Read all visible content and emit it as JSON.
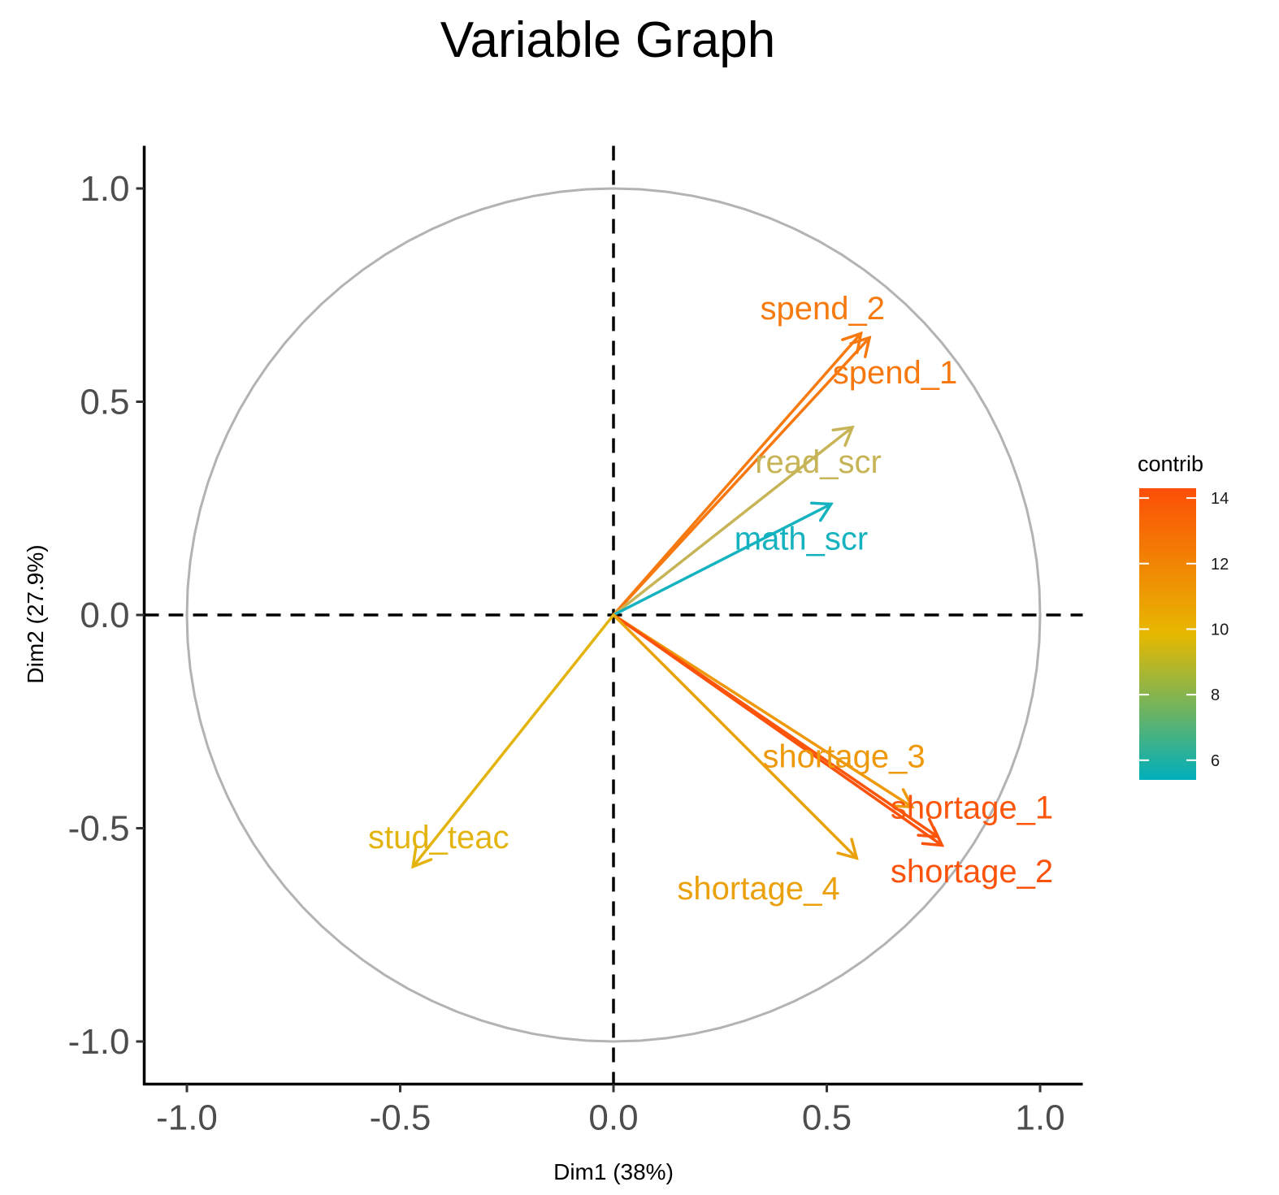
{
  "chart_data": {
    "type": "scatter",
    "subtype": "pca-variable-correlation-circle",
    "title": "Variable Graph",
    "xlabel": "Dim1 (38%)",
    "ylabel": "Dim2 (27.9%)",
    "xlim": [
      -1.1,
      1.1
    ],
    "ylim": [
      -1.1,
      1.1
    ],
    "x_ticks": [
      -1.0,
      -0.5,
      0.0,
      0.5,
      1.0
    ],
    "x_tick_labels": [
      "-1.0",
      "-0.5",
      "0.0",
      "0.5",
      "1.0"
    ],
    "y_ticks": [
      -1.0,
      -0.5,
      0.0,
      0.5,
      1.0
    ],
    "y_tick_labels": [
      "-1.0",
      "-0.5",
      "0.0",
      "0.5",
      "1.0"
    ],
    "grid": false,
    "reference_lines": {
      "x": 0,
      "y": 0,
      "style": "dashed"
    },
    "unit_circle": true,
    "variables": [
      {
        "name": "spend_2",
        "x": 0.58,
        "y": 0.66,
        "contrib": 13.2,
        "color": "#F77A0F",
        "label_x": 0.49,
        "label_y": 0.72
      },
      {
        "name": "spend_1",
        "x": 0.6,
        "y": 0.65,
        "contrib": 13.0,
        "color": "#F7780F",
        "label_x": 0.66,
        "label_y": 0.57
      },
      {
        "name": "read_scr",
        "x": 0.56,
        "y": 0.44,
        "contrib": 8.7,
        "color": "#C7B457",
        "label_x": 0.48,
        "label_y": 0.36
      },
      {
        "name": "math_scr",
        "x": 0.51,
        "y": 0.26,
        "contrib": 5.6,
        "color": "#15B2BF",
        "label_x": 0.44,
        "label_y": 0.18
      },
      {
        "name": "shortage_3",
        "x": 0.7,
        "y": -0.45,
        "contrib": 11.5,
        "color": "#EE980A",
        "label_x": 0.54,
        "label_y": -0.33
      },
      {
        "name": "shortage_1",
        "x": 0.76,
        "y": -0.52,
        "contrib": 14.0,
        "color": "#FC560A",
        "label_x": 0.84,
        "label_y": -0.45
      },
      {
        "name": "shortage_2",
        "x": 0.77,
        "y": -0.54,
        "contrib": 14.2,
        "color": "#FD520A",
        "label_x": 0.84,
        "label_y": -0.6
      },
      {
        "name": "shortage_4",
        "x": 0.57,
        "y": -0.57,
        "contrib": 10.8,
        "color": "#EBA10B",
        "label_x": 0.34,
        "label_y": -0.64
      },
      {
        "name": "stud_teac",
        "x": -0.47,
        "y": -0.59,
        "contrib": 10.2,
        "color": "#E3B40E",
        "label_x": -0.41,
        "label_y": -0.52
      }
    ],
    "legend": {
      "title": "contrib",
      "placement": "right",
      "type": "colorbar",
      "min": 5.4,
      "max": 14.3,
      "ticks": [
        6,
        8,
        10,
        12,
        14
      ],
      "tick_labels": [
        "6",
        "8",
        "10",
        "12",
        "14"
      ],
      "gradient": [
        "#00AFBB",
        "#E7B800",
        "#FC4E07"
      ]
    },
    "colors": {
      "circle": "#b3b3b3",
      "axis": "#000000",
      "tick_label": "#4d4d4d"
    }
  }
}
